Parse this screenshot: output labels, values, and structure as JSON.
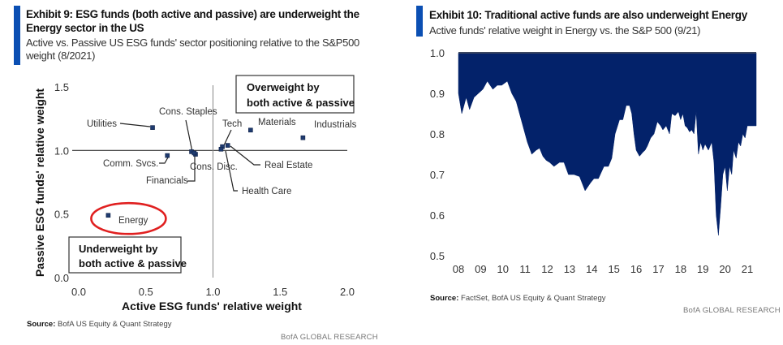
{
  "colors": {
    "accent": "#0b4fb3",
    "navy": "#03226a",
    "marker": "#1f3b70",
    "highlight_ring": "#e02020",
    "axis": "#555555"
  },
  "left": {
    "title_line1": "Exhibit 9: ESG funds (both active and passive) are underweight the",
    "title_line2": "Energy sector in the US",
    "subtitle_line1": "Active vs. Passive US ESG funds' sector positioning relative to the S&P500",
    "subtitle_line2": "weight (8/2021)",
    "source_label": "Source:",
    "source_text": "BofA US Equity & Quant Strategy",
    "brand": "BofA GLOBAL RESEARCH"
  },
  "right": {
    "title": "Exhibit 10: Traditional active funds are also underweight Energy",
    "subtitle": "Active funds' relative weight in Energy vs. the S&P 500 (9/21)",
    "source_label": "Source:",
    "source_text": "FactSet, BofA US Equity & Quant Strategy",
    "brand": "BofA GLOBAL RESEARCH"
  },
  "chart_data": [
    {
      "type": "scatter",
      "title": "Exhibit 9: ESG funds (both active and passive) are underweight the Energy sector in the US",
      "xlabel": "Active ESG funds' relative weight",
      "ylabel": "Passive ESG funds' relative weight",
      "xlim": [
        0,
        2
      ],
      "ylim": [
        0,
        1.5
      ],
      "xticks": [
        "0.0",
        "0.5",
        "1.0",
        "1.5",
        "2.0"
      ],
      "yticks": [
        "0.0",
        "0.5",
        "1.0",
        "1.5"
      ],
      "reference_lines": {
        "x": 1.0,
        "y": 1.0
      },
      "annotations": [
        {
          "text_line1": "Overweight by",
          "text_line2": "both active & passive",
          "placement": "top-right"
        },
        {
          "text_line1": "Underweight by",
          "text_line2": "both active & passive",
          "placement": "bottom-left"
        }
      ],
      "highlight": "Energy",
      "points": [
        {
          "label": "Utilities",
          "x": 0.55,
          "y": 1.18
        },
        {
          "label": "Comm. Svcs.",
          "x": 0.66,
          "y": 0.96
        },
        {
          "label": "Cons. Staples",
          "x": 0.84,
          "y": 0.99
        },
        {
          "label": "Financials",
          "x": 0.87,
          "y": 0.97
        },
        {
          "label": "Cons. Disc.",
          "x": 0.86,
          "y": 0.98
        },
        {
          "label": "Tech",
          "x": 1.07,
          "y": 1.03
        },
        {
          "label": "Health Care",
          "x": 1.06,
          "y": 1.01
        },
        {
          "label": "Real Estate",
          "x": 1.11,
          "y": 1.04
        },
        {
          "label": "Materials",
          "x": 1.28,
          "y": 1.16
        },
        {
          "label": "Industrials",
          "x": 1.67,
          "y": 1.1
        },
        {
          "label": "Energy",
          "x": 0.22,
          "y": 0.49
        }
      ]
    },
    {
      "type": "area",
      "title": "Exhibit 10: Traditional active funds are also underweight Energy",
      "subtitle": "Active funds' relative weight in Energy vs. the S&P 500 (9/21)",
      "xlabel": "",
      "ylabel": "",
      "ylim": [
        0.5,
        1.0
      ],
      "yticks": [
        "0.5",
        "0.6",
        "0.7",
        "0.8",
        "0.9",
        "1.0"
      ],
      "xticks": [
        "08",
        "09",
        "10",
        "11",
        "12",
        "13",
        "14",
        "15",
        "16",
        "17",
        "18",
        "19",
        "20",
        "21"
      ],
      "baseline": 1.0,
      "series": [
        {
          "name": "Active funds' relative weight in Energy",
          "x": [
            2008.0,
            2008.15,
            2008.35,
            2008.5,
            2008.7,
            2008.9,
            2009.1,
            2009.3,
            2009.55,
            2009.75,
            2009.95,
            2010.2,
            2010.4,
            2010.6,
            2010.85,
            2011.1,
            2011.3,
            2011.5,
            2011.65,
            2011.8,
            2011.95,
            2012.1,
            2012.3,
            2012.55,
            2012.75,
            2012.95,
            2013.2,
            2013.45,
            2013.7,
            2013.95,
            2014.1,
            2014.3,
            2014.55,
            2014.75,
            2014.9,
            2015.05,
            2015.25,
            2015.4,
            2015.55,
            2015.7,
            2015.8,
            2015.9,
            2016.0,
            2016.15,
            2016.3,
            2016.4,
            2016.5,
            2016.65,
            2016.8,
            2016.95,
            2017.1,
            2017.2,
            2017.35,
            2017.5,
            2017.6,
            2017.75,
            2017.9,
            2018.0,
            2018.1,
            2018.2,
            2018.3,
            2018.4,
            2018.5,
            2018.6,
            2018.7,
            2018.8,
            2018.9,
            2019.0,
            2019.1,
            2019.25,
            2019.4,
            2019.5,
            2019.6,
            2019.7,
            2019.8,
            2019.9,
            2020.0,
            2020.1,
            2020.2,
            2020.3,
            2020.38,
            2020.5,
            2020.6,
            2020.7,
            2020.8,
            2020.9,
            2021.0,
            2021.1,
            2021.2,
            2021.3
          ],
          "y": [
            0.9,
            0.85,
            0.89,
            0.86,
            0.89,
            0.9,
            0.91,
            0.93,
            0.91,
            0.92,
            0.92,
            0.93,
            0.9,
            0.88,
            0.83,
            0.78,
            0.75,
            0.76,
            0.765,
            0.745,
            0.735,
            0.73,
            0.72,
            0.73,
            0.73,
            0.7,
            0.7,
            0.695,
            0.66,
            0.68,
            0.69,
            0.69,
            0.72,
            0.72,
            0.74,
            0.8,
            0.835,
            0.835,
            0.87,
            0.87,
            0.85,
            0.8,
            0.76,
            0.745,
            0.755,
            0.76,
            0.77,
            0.79,
            0.8,
            0.83,
            0.82,
            0.81,
            0.82,
            0.8,
            0.85,
            0.845,
            0.855,
            0.835,
            0.85,
            0.82,
            0.815,
            0.805,
            0.81,
            0.8,
            0.855,
            0.75,
            0.78,
            0.76,
            0.775,
            0.76,
            0.78,
            0.73,
            0.6,
            0.55,
            0.62,
            0.7,
            0.72,
            0.66,
            0.72,
            0.7,
            0.76,
            0.74,
            0.78,
            0.77,
            0.8,
            0.79,
            0.82,
            0.82,
            0.82,
            0.82
          ]
        }
      ]
    }
  ]
}
